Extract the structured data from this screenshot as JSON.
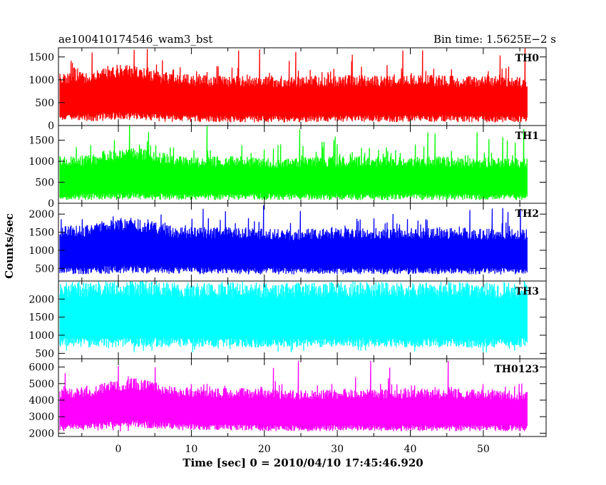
{
  "header": {
    "left": "ae100410174546_wam3_bst",
    "right": "Bin time: 1.5625E−2 s"
  },
  "chart_data": {
    "type": "line",
    "xlabel": "Time [sec] 0 = 2010/04/10 17:45:46.920",
    "ylabel": "Counts/sec",
    "xlim": [
      -8.2,
      58.6
    ],
    "x_ticks": [
      0,
      10,
      20,
      30,
      40,
      50
    ],
    "x_tick_labels": [
      "0",
      "10",
      "20",
      "30",
      "40",
      "50"
    ],
    "x_data_range": [
      -8,
      56
    ],
    "bin_time": 0.015625,
    "grid": false,
    "panels": [
      {
        "name": "TH0",
        "color": "#ff0000",
        "ylim": [
          0,
          1700
        ],
        "yticks": [
          0,
          500,
          1000,
          1500
        ],
        "envelope": [
          [
            -8,
            180,
            1020
          ],
          [
            -4,
            170,
            1050
          ],
          [
            -1,
            200,
            1180
          ],
          [
            1,
            220,
            1230
          ],
          [
            2,
            210,
            1200
          ],
          [
            4,
            180,
            1100
          ],
          [
            8,
            150,
            1000
          ],
          [
            12,
            150,
            980
          ],
          [
            16,
            140,
            960
          ],
          [
            20,
            140,
            960
          ],
          [
            24,
            140,
            950
          ],
          [
            28,
            150,
            960
          ],
          [
            32,
            150,
            980
          ],
          [
            36,
            150,
            970
          ],
          [
            40,
            150,
            990
          ],
          [
            44,
            150,
            980
          ],
          [
            48,
            140,
            960
          ],
          [
            52,
            140,
            950
          ],
          [
            56,
            140,
            940
          ]
        ],
        "typical_range": [
          150,
          1300
        ],
        "peak": 1700
      },
      {
        "name": "TH1",
        "color": "#00ff00",
        "ylim": [
          0,
          1850
        ],
        "yticks": [
          0,
          500,
          1000,
          1500
        ],
        "envelope": [
          [
            -8,
            160,
            1000
          ],
          [
            -4,
            160,
            1030
          ],
          [
            -1,
            170,
            1150
          ],
          [
            2,
            180,
            1200
          ],
          [
            4,
            170,
            1150
          ],
          [
            8,
            150,
            1000
          ],
          [
            12,
            150,
            980
          ],
          [
            16,
            150,
            1000
          ],
          [
            20,
            150,
            960
          ],
          [
            24,
            150,
            960
          ],
          [
            28,
            150,
            1000
          ],
          [
            32,
            150,
            990
          ],
          [
            36,
            150,
            990
          ],
          [
            40,
            150,
            980
          ],
          [
            44,
            150,
            990
          ],
          [
            48,
            150,
            980
          ],
          [
            52,
            150,
            960
          ],
          [
            56,
            150,
            950
          ]
        ],
        "typical_range": [
          150,
          1400
        ],
        "peak": 1850
      },
      {
        "name": "TH2",
        "color": "#0000ff",
        "ylim": [
          150,
          2300
        ],
        "yticks": [
          500,
          1000,
          1500,
          2000
        ],
        "envelope": [
          [
            -8,
            430,
            1500
          ],
          [
            -4,
            430,
            1550
          ],
          [
            -1,
            460,
            1700
          ],
          [
            2,
            480,
            1750
          ],
          [
            4,
            460,
            1650
          ],
          [
            8,
            440,
            1500
          ],
          [
            12,
            430,
            1480
          ],
          [
            16,
            430,
            1500
          ],
          [
            20,
            420,
            1450
          ],
          [
            24,
            420,
            1430
          ],
          [
            28,
            430,
            1460
          ],
          [
            32,
            430,
            1480
          ],
          [
            36,
            430,
            1470
          ],
          [
            40,
            420,
            1470
          ],
          [
            44,
            430,
            1480
          ],
          [
            48,
            420,
            1450
          ],
          [
            52,
            420,
            1440
          ],
          [
            56,
            420,
            1430
          ]
        ],
        "typical_range": [
          400,
          1900
        ],
        "peak": 2250
      },
      {
        "name": "TH3",
        "color": "#00ffff",
        "ylim": [
          350,
          2500
        ],
        "yticks": [
          500,
          1000,
          1500,
          2000
        ],
        "envelope": [
          [
            -8,
            800,
            2250
          ],
          [
            -4,
            800,
            2280
          ],
          [
            -1,
            800,
            2300
          ],
          [
            2,
            820,
            2330
          ],
          [
            4,
            800,
            2300
          ],
          [
            8,
            800,
            2250
          ],
          [
            12,
            800,
            2250
          ],
          [
            16,
            800,
            2260
          ],
          [
            20,
            790,
            2240
          ],
          [
            24,
            790,
            2230
          ],
          [
            28,
            800,
            2250
          ],
          [
            32,
            800,
            2270
          ],
          [
            36,
            800,
            2260
          ],
          [
            40,
            790,
            2250
          ],
          [
            44,
            800,
            2260
          ],
          [
            48,
            790,
            2250
          ],
          [
            52,
            790,
            2240
          ],
          [
            56,
            790,
            2230
          ]
        ],
        "typical_range": [
          600,
          2450
        ],
        "peak": 2500
      },
      {
        "name": "TH0123",
        "color": "#ff00ff",
        "ylim": [
          1800,
          6500
        ],
        "yticks": [
          2000,
          3000,
          4000,
          5000,
          6000
        ],
        "envelope": [
          [
            -8,
            2400,
            4400
          ],
          [
            -4,
            2400,
            4500
          ],
          [
            -1,
            2500,
            4800
          ],
          [
            2,
            2600,
            5000
          ],
          [
            4,
            2500,
            4850
          ],
          [
            8,
            2400,
            4500
          ],
          [
            12,
            2350,
            4400
          ],
          [
            16,
            2350,
            4450
          ],
          [
            20,
            2300,
            4350
          ],
          [
            24,
            2300,
            4300
          ],
          [
            28,
            2300,
            4350
          ],
          [
            32,
            2350,
            4400
          ],
          [
            36,
            2300,
            4380
          ],
          [
            40,
            2300,
            4380
          ],
          [
            44,
            2300,
            4400
          ],
          [
            48,
            2300,
            4350
          ],
          [
            52,
            2300,
            4300
          ],
          [
            56,
            2300,
            4300
          ]
        ],
        "typical_range": [
          2200,
          5000
        ],
        "peak": 6400
      }
    ]
  }
}
